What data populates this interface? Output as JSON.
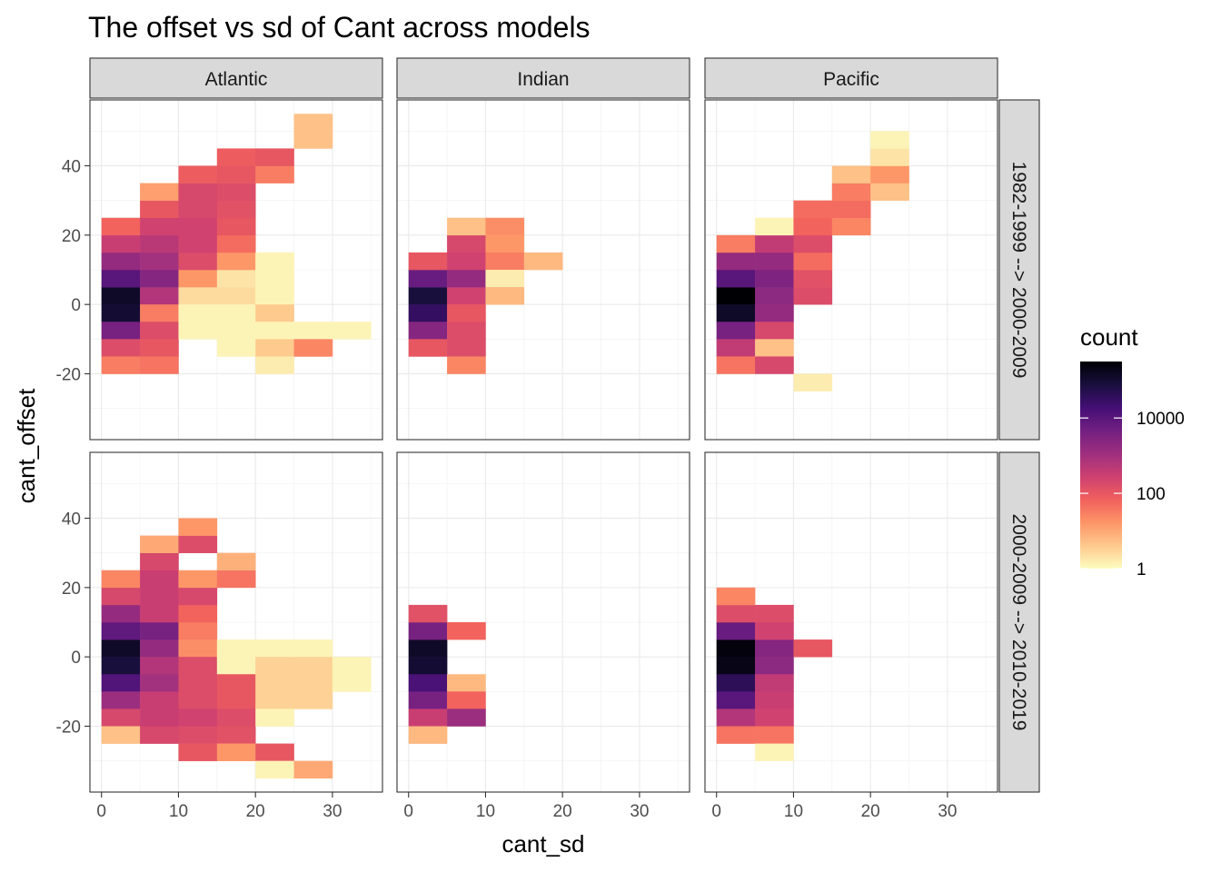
{
  "chart_data": {
    "type": "heatmap",
    "title": "The offset vs sd of Cant across models",
    "xlabel": "cant_sd",
    "ylabel": "cant_offset",
    "x_ticks": [
      0,
      10,
      20,
      30
    ],
    "x_tick_labels": [
      "0",
      "10",
      "20",
      "30"
    ],
    "y_ticks": [
      -20,
      0,
      20,
      40
    ],
    "y_tick_labels": [
      "-20",
      "0",
      "20",
      "40"
    ],
    "xlim": [
      -1.5,
      36.5
    ],
    "ylim": [
      -39,
      59
    ],
    "bin_width": 5,
    "columns": [
      "Atlantic",
      "Indian",
      "Pacific"
    ],
    "rows": [
      "1982-1999 --> 2000-2009",
      "2000-2009 --> 2010-2019"
    ],
    "legend": {
      "title": "count",
      "scale": "log10",
      "min_log": 0,
      "max_log": 5.5,
      "breaks": [
        1,
        100,
        10000
      ],
      "break_labels": [
        "1",
        "100",
        "10000"
      ],
      "colors": [
        "#fcfdbf",
        "#fec98d",
        "#fd9567",
        "#f1605d",
        "#cd4071",
        "#9e2f7f",
        "#721f81",
        "#440f76",
        "#180f3d",
        "#000004"
      ]
    },
    "panels": [
      {
        "col": "Atlantic",
        "row": "1982-1999 --> 2000-2009",
        "cells": [
          [
            2.5,
            2.5,
            5.1
          ],
          [
            2.5,
            -2.5,
            5.0
          ],
          [
            2.5,
            7.5,
            4.0
          ],
          [
            2.5,
            -7.5,
            3.6
          ],
          [
            2.5,
            12.5,
            3.2
          ],
          [
            2.5,
            17.5,
            2.5
          ],
          [
            2.5,
            22.5,
            1.8
          ],
          [
            2.5,
            -12.5,
            2.2
          ],
          [
            2.5,
            -17.5,
            1.5
          ],
          [
            7.5,
            2.5,
            2.8
          ],
          [
            7.5,
            -2.5,
            1.5
          ],
          [
            7.5,
            7.5,
            3.4
          ],
          [
            7.5,
            12.5,
            3.0
          ],
          [
            7.5,
            17.5,
            2.7
          ],
          [
            7.5,
            22.5,
            2.4
          ],
          [
            7.5,
            27.5,
            2.0
          ],
          [
            7.5,
            32.5,
            1.1
          ],
          [
            7.5,
            -7.5,
            2.2
          ],
          [
            7.5,
            -12.5,
            2.0
          ],
          [
            7.5,
            -17.5,
            1.6
          ],
          [
            12.5,
            2.5,
            0.4
          ],
          [
            12.5,
            -2.5,
            0.1
          ],
          [
            12.5,
            -7.5,
            0.1
          ],
          [
            12.5,
            7.5,
            1.2
          ],
          [
            12.5,
            12.5,
            2.2
          ],
          [
            12.5,
            17.5,
            2.4
          ],
          [
            12.5,
            22.5,
            2.4
          ],
          [
            12.5,
            27.5,
            2.3
          ],
          [
            12.5,
            32.5,
            2.3
          ],
          [
            12.5,
            37.5,
            1.9
          ],
          [
            17.5,
            2.5,
            0.4
          ],
          [
            17.5,
            -2.5,
            0.1
          ],
          [
            17.5,
            -7.5,
            0.1
          ],
          [
            17.5,
            -12.5,
            0.1
          ],
          [
            17.5,
            7.5,
            0.3
          ],
          [
            17.5,
            12.5,
            1.2
          ],
          [
            17.5,
            17.5,
            1.7
          ],
          [
            17.5,
            22.5,
            2.0
          ],
          [
            17.5,
            27.5,
            2.1
          ],
          [
            17.5,
            32.5,
            2.2
          ],
          [
            17.5,
            37.5,
            2.0
          ],
          [
            17.5,
            42.5,
            1.9
          ],
          [
            22.5,
            12.5,
            0.1
          ],
          [
            22.5,
            7.5,
            0.1
          ],
          [
            22.5,
            2.5,
            0.1
          ],
          [
            22.5,
            -2.5,
            0.6
          ],
          [
            22.5,
            -7.5,
            0.1
          ],
          [
            22.5,
            -12.5,
            0.6
          ],
          [
            22.5,
            -17.5,
            0.2
          ],
          [
            22.5,
            37.5,
            1.5
          ],
          [
            22.5,
            42.5,
            2.0
          ],
          [
            27.5,
            -7.5,
            0.1
          ],
          [
            27.5,
            -12.5,
            1.4
          ],
          [
            27.5,
            47.5,
            0.7
          ],
          [
            27.5,
            52.5,
            0.7
          ],
          [
            32.5,
            -7.5,
            0.1
          ]
        ]
      },
      {
        "col": "Indian",
        "row": "1982-1999 --> 2000-2009",
        "cells": [
          [
            2.5,
            2.5,
            4.9
          ],
          [
            2.5,
            -2.5,
            4.5
          ],
          [
            2.5,
            7.5,
            3.8
          ],
          [
            2.5,
            -7.5,
            3.4
          ],
          [
            2.5,
            12.5,
            2.0
          ],
          [
            2.5,
            -12.5,
            2.0
          ],
          [
            7.5,
            2.5,
            2.4
          ],
          [
            7.5,
            7.5,
            3.2
          ],
          [
            7.5,
            12.5,
            2.4
          ],
          [
            7.5,
            -2.5,
            2.0
          ],
          [
            7.5,
            -7.5,
            2.2
          ],
          [
            7.5,
            -12.5,
            2.2
          ],
          [
            7.5,
            -17.5,
            1.4
          ],
          [
            7.5,
            17.5,
            2.3
          ],
          [
            7.5,
            22.5,
            0.7
          ],
          [
            12.5,
            22.5,
            1.3
          ],
          [
            12.5,
            17.5,
            1.2
          ],
          [
            12.5,
            12.5,
            1.5
          ],
          [
            12.5,
            7.5,
            0.2
          ],
          [
            12.5,
            2.5,
            0.8
          ],
          [
            17.5,
            12.5,
            0.8
          ]
        ]
      },
      {
        "col": "Pacific",
        "row": "1982-1999 --> 2000-2009",
        "cells": [
          [
            2.5,
            2.5,
            5.5
          ],
          [
            2.5,
            -2.5,
            5.1
          ],
          [
            2.5,
            7.5,
            4.0
          ],
          [
            2.5,
            -7.5,
            3.6
          ],
          [
            2.5,
            12.5,
            3.2
          ],
          [
            2.5,
            -12.5,
            2.6
          ],
          [
            2.5,
            -17.5,
            1.6
          ],
          [
            2.5,
            17.5,
            1.5
          ],
          [
            7.5,
            2.5,
            3.3
          ],
          [
            7.5,
            -2.5,
            3.2
          ],
          [
            7.5,
            7.5,
            3.5
          ],
          [
            7.5,
            12.5,
            3.2
          ],
          [
            7.5,
            -7.5,
            2.3
          ],
          [
            7.5,
            -12.5,
            0.7
          ],
          [
            7.5,
            -17.5,
            2.3
          ],
          [
            7.5,
            17.5,
            2.6
          ],
          [
            7.5,
            22.5,
            0.1
          ],
          [
            12.5,
            2.5,
            2.2
          ],
          [
            12.5,
            7.5,
            2.1
          ],
          [
            12.5,
            12.5,
            1.7
          ],
          [
            12.5,
            17.5,
            2.2
          ],
          [
            12.5,
            22.5,
            1.8
          ],
          [
            12.5,
            27.5,
            1.7
          ],
          [
            12.5,
            -22.5,
            0.2
          ],
          [
            17.5,
            22.5,
            1.4
          ],
          [
            17.5,
            27.5,
            1.7
          ],
          [
            17.5,
            32.5,
            1.5
          ],
          [
            17.5,
            37.5,
            0.7
          ],
          [
            22.5,
            32.5,
            0.7
          ],
          [
            22.5,
            37.5,
            1.2
          ],
          [
            22.5,
            42.5,
            0.3
          ],
          [
            22.5,
            47.5,
            0.1
          ]
        ]
      },
      {
        "col": "Atlantic",
        "row": "2000-2009 --> 2010-2019",
        "cells": [
          [
            2.5,
            2.5,
            5.1
          ],
          [
            2.5,
            -2.5,
            4.9
          ],
          [
            2.5,
            7.5,
            3.9
          ],
          [
            2.5,
            -7.5,
            4.1
          ],
          [
            2.5,
            12.5,
            3.2
          ],
          [
            2.5,
            -12.5,
            3.1
          ],
          [
            2.5,
            17.5,
            2.3
          ],
          [
            2.5,
            -17.5,
            2.3
          ],
          [
            2.5,
            22.5,
            1.4
          ],
          [
            2.5,
            -22.5,
            0.7
          ],
          [
            7.5,
            2.5,
            3.2
          ],
          [
            7.5,
            -2.5,
            2.8
          ],
          [
            7.5,
            7.5,
            3.6
          ],
          [
            7.5,
            -7.5,
            3.0
          ],
          [
            7.5,
            12.5,
            2.5
          ],
          [
            7.5,
            -12.5,
            2.5
          ],
          [
            7.5,
            17.5,
            2.5
          ],
          [
            7.5,
            -17.5,
            2.5
          ],
          [
            7.5,
            22.5,
            2.5
          ],
          [
            7.5,
            -22.5,
            2.3
          ],
          [
            7.5,
            27.5,
            2.3
          ],
          [
            7.5,
            32.5,
            1.0
          ],
          [
            12.5,
            2.5,
            1.3
          ],
          [
            12.5,
            -2.5,
            2.2
          ],
          [
            12.5,
            7.5,
            1.5
          ],
          [
            12.5,
            -7.5,
            2.2
          ],
          [
            12.5,
            12.5,
            1.8
          ],
          [
            12.5,
            -12.5,
            2.2
          ],
          [
            12.5,
            17.5,
            2.3
          ],
          [
            12.5,
            -17.5,
            2.4
          ],
          [
            12.5,
            22.5,
            1.2
          ],
          [
            12.5,
            -22.5,
            2.2
          ],
          [
            12.5,
            32.5,
            2.2
          ],
          [
            12.5,
            -27.5,
            2.0
          ],
          [
            12.5,
            37.5,
            1.2
          ],
          [
            17.5,
            2.5,
            0.1
          ],
          [
            17.5,
            -2.5,
            0.1
          ],
          [
            17.5,
            -7.5,
            2.0
          ],
          [
            17.5,
            -12.5,
            2.0
          ],
          [
            17.5,
            -17.5,
            2.2
          ],
          [
            17.5,
            -22.5,
            2.1
          ],
          [
            17.5,
            -27.5,
            1.2
          ],
          [
            17.5,
            22.5,
            1.6
          ],
          [
            17.5,
            27.5,
            0.9
          ],
          [
            22.5,
            2.5,
            0.1
          ],
          [
            22.5,
            -2.5,
            0.5
          ],
          [
            22.5,
            -7.5,
            0.5
          ],
          [
            22.5,
            -12.5,
            0.5
          ],
          [
            22.5,
            -17.5,
            0.1
          ],
          [
            22.5,
            -27.5,
            2.0
          ],
          [
            22.5,
            -32.5,
            0.1
          ],
          [
            27.5,
            2.5,
            0.1
          ],
          [
            27.5,
            -2.5,
            0.5
          ],
          [
            27.5,
            -7.5,
            0.5
          ],
          [
            27.5,
            -12.5,
            0.5
          ],
          [
            27.5,
            -32.5,
            1.0
          ],
          [
            32.5,
            -2.5,
            0.1
          ],
          [
            32.5,
            -7.5,
            0.1
          ]
        ]
      },
      {
        "col": "Indian",
        "row": "2000-2009 --> 2010-2019",
        "cells": [
          [
            2.5,
            2.5,
            5.1
          ],
          [
            2.5,
            -2.5,
            5.0
          ],
          [
            2.5,
            7.5,
            3.6
          ],
          [
            2.5,
            -7.5,
            4.2
          ],
          [
            2.5,
            12.5,
            2.1
          ],
          [
            2.5,
            -12.5,
            3.6
          ],
          [
            2.5,
            -17.5,
            2.5
          ],
          [
            2.5,
            -22.5,
            0.8
          ],
          [
            7.5,
            7.5,
            1.8
          ],
          [
            7.5,
            -7.5,
            0.8
          ],
          [
            7.5,
            -12.5,
            1.8
          ],
          [
            7.5,
            -17.5,
            3.1
          ]
        ]
      },
      {
        "col": "Pacific",
        "row": "2000-2009 --> 2010-2019",
        "cells": [
          [
            2.5,
            2.5,
            5.4
          ],
          [
            2.5,
            -2.5,
            5.3
          ],
          [
            2.5,
            7.5,
            3.8
          ],
          [
            2.5,
            -7.5,
            4.6
          ],
          [
            2.5,
            12.5,
            2.2
          ],
          [
            2.5,
            -12.5,
            4.0
          ],
          [
            2.5,
            17.5,
            1.4
          ],
          [
            2.5,
            -17.5,
            2.8
          ],
          [
            2.5,
            -22.5,
            1.6
          ],
          [
            7.5,
            2.5,
            3.4
          ],
          [
            7.5,
            -2.5,
            3.3
          ],
          [
            7.5,
            7.5,
            2.4
          ],
          [
            7.5,
            -7.5,
            2.6
          ],
          [
            7.5,
            12.5,
            2.2
          ],
          [
            7.5,
            -12.5,
            2.5
          ],
          [
            7.5,
            -17.5,
            2.4
          ],
          [
            7.5,
            -22.5,
            1.6
          ],
          [
            7.5,
            -27.5,
            0.1
          ],
          [
            12.5,
            2.5,
            2.0
          ]
        ]
      }
    ]
  }
}
